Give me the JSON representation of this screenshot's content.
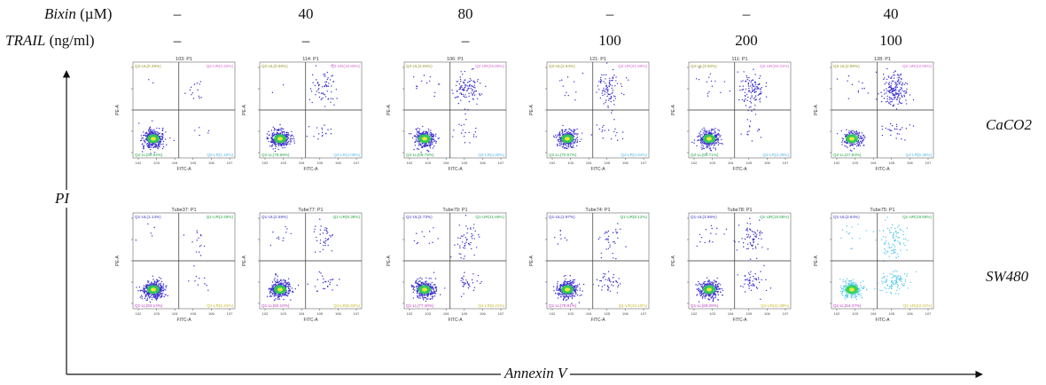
{
  "header": {
    "bixin_label_italic": "Bixin",
    "bixin_unit": "(µM)",
    "trail_label_italic": "TRAIL",
    "trail_unit": "(ng/ml)",
    "bixin_values": [
      "–",
      "40",
      "80",
      "–",
      "–",
      "40"
    ],
    "trail_values": [
      "–",
      "–",
      "–",
      "100",
      "200",
      "100"
    ]
  },
  "row_labels": [
    "CaCO2",
    "SW480"
  ],
  "axis": {
    "y": "PI",
    "x": "Annexin V"
  },
  "colors": {
    "dots": "#3a2fd0",
    "core_green": "#2fd44a",
    "core_yellow": "#e8e83a",
    "tick": "#444444",
    "cyan": "#57c8ec"
  },
  "rows": [
    {
      "cell_line": "CaCO2",
      "xaxis": "FITC-A",
      "yaxis": "PE-A",
      "panels": [
        {
          "title": "103: P1",
          "ul": "Q2-UL(0.49%)",
          "ur": "Q2-UR(3.42%)",
          "ll": "Q2-LL(94.94%)",
          "lr": "Q2-LR(1.15%)"
        },
        {
          "title": "114: P1",
          "ul": "Q2-UL(0.58%)",
          "ur": "Q2-UR(15.80%)",
          "ll": "Q2-LL(78.68%)",
          "lr": "Q2-LR(4.09%)"
        },
        {
          "title": "106: P1",
          "ul": "Q2-UL(3.06%)",
          "ur": "Q2-UR(25.85%)",
          "ll": "Q2-LL(69.79%)",
          "lr": "Q2-LR(4.30%)"
        },
        {
          "title": "121: P1",
          "ul": "Q2-UL(2.64%)",
          "ur": "Q2-UR(21.95%)",
          "ll": "Q2-LL(70.57%)",
          "lr": "Q2-LR(4.64%)"
        },
        {
          "title": "111: P1",
          "ul": "Q2-UL(3.60%)",
          "ur": "Q2-UR(26.31%)",
          "ll": "Q2-LL(66.71%)",
          "lr": "Q2-LR(3.38%)"
        },
        {
          "title": "128: P1",
          "ul": "Q2-UL(2.85%)",
          "ur": "Q2-UR(42.86%)",
          "ll": "Q2-LL(47.83%)",
          "lr": "Q2-LR(6.35%)"
        }
      ]
    },
    {
      "cell_line": "SW480",
      "xaxis": "FITC-A",
      "yaxis": "PE-A",
      "panels": [
        {
          "title": "Tube37: P1",
          "ul": "Q1-UL(1.14%)",
          "ur": "Q1-UR(3.48%)",
          "ll": "Q1-LL(93.14%)",
          "lr": "Q1-LR(2.24%)"
        },
        {
          "title": "Tube77: P1",
          "ul": "Q1-UL(2.59%)",
          "ur": "Q1-UR(9.38%)",
          "ll": "Q1-LL(82.10%)",
          "lr": "Q1-LR(5.93%)"
        },
        {
          "title": "Tube79: P1",
          "ul": "Q1-UL(2.73%)",
          "ur": "Q1-UR(11.66%)",
          "ll": "Q1-LL(77.40%)",
          "lr": "Q1-LR(8.21%)"
        },
        {
          "title": "Tube74: P1",
          "ul": "Q1-UL(1.97%)",
          "ur": "Q1-UR(8.12%)",
          "ll": "Q1-LL(79.81%)",
          "lr": "Q1-LR(10.10%)"
        },
        {
          "title": "Tube78: P1",
          "ul": "Q1-UL(3.96%)",
          "ur": "Q1-UR(15.68%)",
          "ll": "Q1-LL(69.26%)",
          "lr": "Q1-LR(11.09%)"
        },
        {
          "title": "Tube75: P1",
          "ul": "Q1-UL(3.64%)",
          "ur": "Q1-UR(19.58%)",
          "ll": "Q1-LL(54.47%)",
          "lr": "Q1-LR(22.31%)"
        }
      ]
    }
  ]
}
